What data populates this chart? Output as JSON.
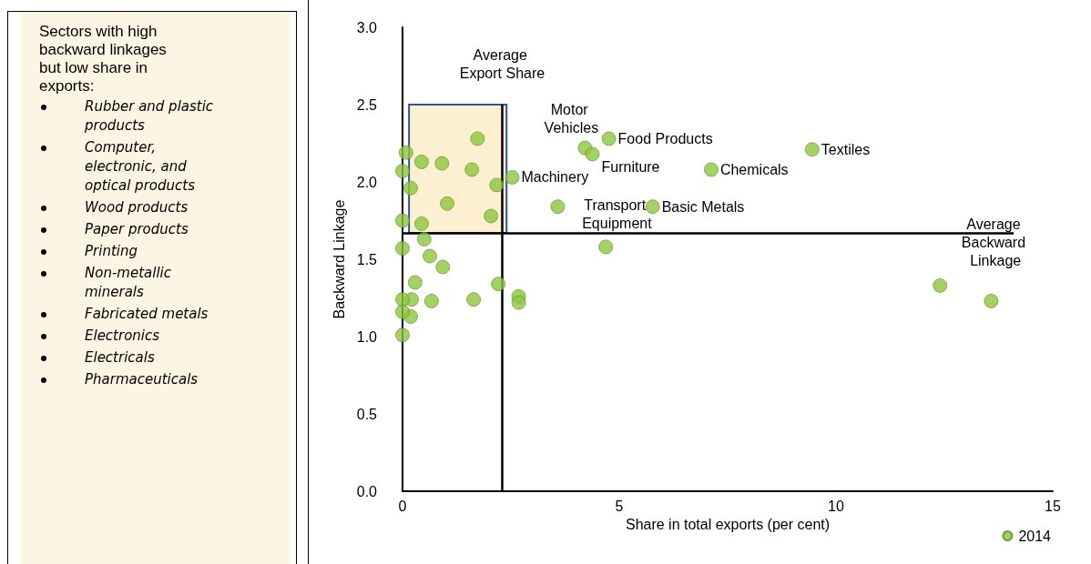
{
  "chart_data": [
    {
      "type": "other",
      "title": "Sectors with high backward linkages but low share in exports:",
      "annotations": [
        "Rubber and plastic products",
        "Computer, electronic, and optical products",
        "Wood products",
        "Paper products",
        "Printing",
        "Non-metallic minerals",
        "Fabricated metals",
        "Electronics",
        "Electricals",
        "Pharmaceuticals"
      ]
    },
    {
      "type": "scatter",
      "xlabel": "Share in total exports (per cent)",
      "ylabel": "Backward Linkage",
      "xlim": [
        0,
        15
      ],
      "ylim": [
        0,
        3
      ],
      "xticks": [
        0,
        5,
        10,
        15
      ],
      "yticks": [
        {
          "value": 0,
          "label": "0.0"
        },
        0.5,
        {
          "value": 1,
          "label": "1.0"
        },
        1.5,
        {
          "value": 2,
          "label": "2.0"
        },
        2.5,
        {
          "value": 3,
          "label": "3.0"
        }
      ],
      "grid": false,
      "legend": "bottom right",
      "marker": "circle",
      "series": [
        {
          "name": "2014",
          "color": "#8cc63f",
          "x": [
            1.73,
            0.08,
            0.44,
            0.91,
            1.6,
            0.0,
            2.53,
            2.17,
            0.19,
            1.03,
            2.04,
            0.0,
            0.44,
            0.5,
            0.0,
            0.63,
            0.93,
            0.29,
            2.21,
            0.21,
            0.67,
            1.64,
            2.68,
            2.68,
            0.0,
            0.19,
            0.0,
            0.0,
            4.21,
            4.76,
            4.38,
            7.12,
            9.45,
            3.58,
            5.77,
            4.69,
            12.4,
            13.58
          ],
          "values": [
            2.28,
            2.19,
            2.13,
            2.12,
            2.08,
            2.07,
            2.03,
            1.98,
            1.96,
            1.86,
            1.78,
            1.75,
            1.73,
            1.63,
            1.57,
            1.52,
            1.45,
            1.35,
            1.34,
            1.24,
            1.23,
            1.24,
            1.26,
            1.22,
            1.24,
            1.13,
            1.16,
            1.01,
            2.22,
            2.28,
            2.18,
            2.08,
            2.21,
            1.84,
            1.84,
            1.58,
            1.33,
            1.23
          ]
        }
      ],
      "ref_lines": [
        {
          "axis": "x",
          "value": 2.3,
          "label": "Average Export Share",
          "color": "#000000"
        },
        {
          "axis": "y",
          "value": 1.67,
          "label": "Average Backward Linkage",
          "color": "#000000"
        }
      ],
      "bands": [
        {
          "axis": "y",
          "from": 1.67,
          "to": 2.5,
          "color": "#fdf0d0"
        }
      ],
      "annotations": [
        {
          "text": "Motor Vehicles",
          "x": 4.21,
          "y": 2.22
        },
        {
          "text": "Food Products",
          "x": 4.76,
          "y": 2.28
        },
        {
          "text": "Furniture",
          "x": 4.38,
          "y": 2.18
        },
        {
          "text": "Machinery",
          "x": 2.53,
          "y": 2.03
        },
        {
          "text": "Chemicals",
          "x": 7.12,
          "y": 2.08
        },
        {
          "text": "Textiles",
          "x": 9.45,
          "y": 2.21
        },
        {
          "text": "Transport Equipment",
          "x": 3.58,
          "y": 1.84
        },
        {
          "text": "Basic Metals",
          "x": 5.77,
          "y": 1.84
        }
      ]
    }
  ]
}
